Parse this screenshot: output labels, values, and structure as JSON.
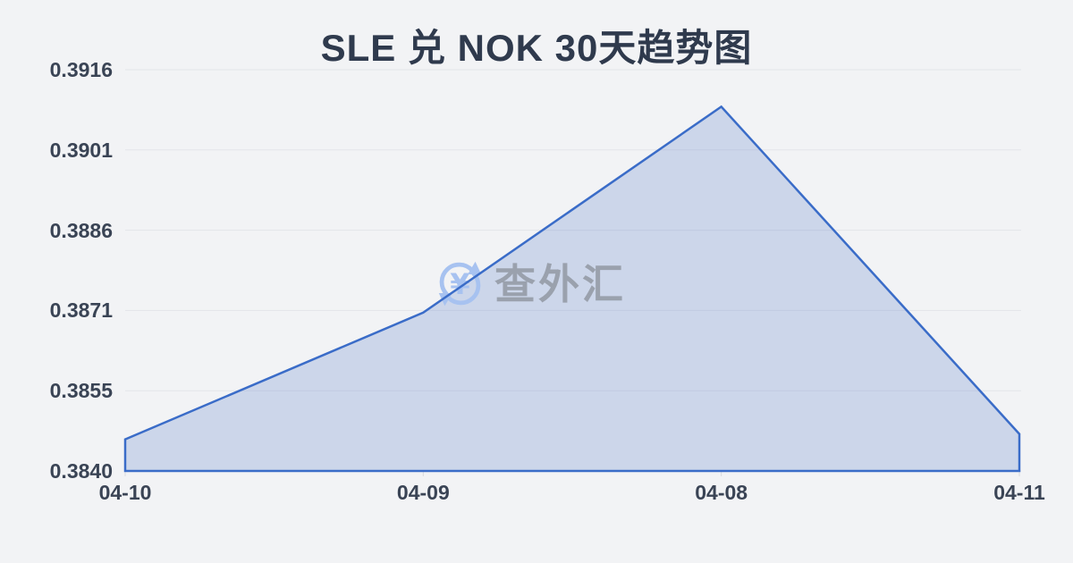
{
  "title": "SLE 兑 NOK 30天趋势图",
  "watermark": {
    "icon": "currency-exchange-circular-arrows-icon",
    "text": "查外汇"
  },
  "chart_data": {
    "type": "area",
    "title": "SLE 兑 NOK 30天趋势图",
    "x": [
      "04-10",
      "04-09",
      "04-08",
      "04-11"
    ],
    "series": [
      {
        "name": "SLE/NOK",
        "values": [
          0.3846,
          0.387,
          0.3909,
          0.3847
        ]
      }
    ],
    "xlabel": "",
    "ylabel": "",
    "ylim": [
      0.384,
      0.3916
    ],
    "ytick_labels": [
      "0.3840",
      "0.3855",
      "0.3871",
      "0.3886",
      "0.3901",
      "0.3916"
    ],
    "grid": "horizontal-only",
    "legend_position": "none"
  },
  "colors": {
    "background": "#f2f3f5",
    "title": "#2f3a4d",
    "axis_label": "#3a4455",
    "gridline": "#e3e5e9",
    "tick": "#d8dade",
    "line": "#3a6cc8",
    "fill": "rgba(83,120,199,0.24)",
    "watermark_icon": "#a7c2f0",
    "watermark_text": "#9aa1ad"
  }
}
